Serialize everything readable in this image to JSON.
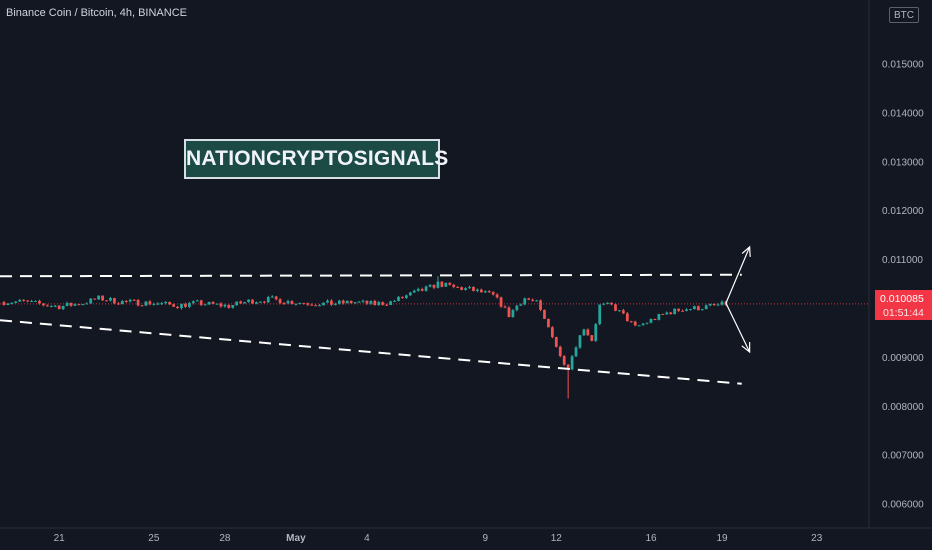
{
  "header": {
    "symbol_title": "Binance Coin / Bitcoin, 4h, BINANCE",
    "currency_badge": "BTC"
  },
  "watermark": {
    "text": "NATIONCRYPTOSIGNALS"
  },
  "price_tag": {
    "price": "0.010085",
    "countdown": "01:51:44"
  },
  "colors": {
    "background": "#131722",
    "up": "#26a69a",
    "down": "#ef5350",
    "axis_text": "#b2b5be",
    "last_price_line": "#f23645",
    "pattern_lines": "#ffffff"
  },
  "chart_data": {
    "type": "candlestick",
    "title": "Binance Coin / Bitcoin, 4h, BINANCE",
    "ylabel": "BTC",
    "ylim": [
      0.0055,
      0.0163
    ],
    "y_ticks": [
      {
        "value": 0.015,
        "label": "0.015000"
      },
      {
        "value": 0.014,
        "label": "0.014000"
      },
      {
        "value": 0.013,
        "label": "0.013000"
      },
      {
        "value": 0.012,
        "label": "0.012000"
      },
      {
        "value": 0.011,
        "label": "0.011000"
      },
      {
        "value": 0.009,
        "label": "0.009000"
      },
      {
        "value": 0.008,
        "label": "0.008000"
      },
      {
        "value": 0.007,
        "label": "0.007000"
      },
      {
        "value": 0.006,
        "label": "0.006000"
      }
    ],
    "x_ticks": [
      {
        "date": "2022-04-21",
        "label": "21"
      },
      {
        "date": "2022-04-25",
        "label": "25"
      },
      {
        "date": "2022-04-28",
        "label": "28"
      },
      {
        "date": "2022-05-01",
        "label": "May"
      },
      {
        "date": "2022-05-04",
        "label": "4"
      },
      {
        "date": "2022-05-09",
        "label": "9"
      },
      {
        "date": "2022-05-12",
        "label": "12"
      },
      {
        "date": "2022-05-16",
        "label": "16"
      },
      {
        "date": "2022-05-19",
        "label": "19"
      },
      {
        "date": "2022-05-23",
        "label": "23"
      }
    ],
    "x_range": [
      "2022-04-18T12:00",
      "2022-05-25T04:00"
    ],
    "last_price": 0.010085,
    "price_path": [
      [
        "2022-04-18T12:00",
        0.01012
      ],
      [
        "2022-04-19T12:00",
        0.01013
      ],
      [
        "2022-04-20T08:00",
        0.01007
      ],
      [
        "2022-04-21T00:00",
        0.01003
      ],
      [
        "2022-04-22T00:00",
        0.0101
      ],
      [
        "2022-04-22T16:00",
        0.0102
      ],
      [
        "2022-04-23T12:00",
        0.01013
      ],
      [
        "2022-04-25T00:00",
        0.0101
      ],
      [
        "2022-04-26T00:00",
        0.01005
      ],
      [
        "2022-04-26T20:00",
        0.0101
      ],
      [
        "2022-04-27T12:00",
        0.01007
      ],
      [
        "2022-04-28T04:00",
        0.01004
      ],
      [
        "2022-04-29T00:00",
        0.01014
      ],
      [
        "2022-04-30T00:00",
        0.01018
      ],
      [
        "2022-04-30T16:00",
        0.01013
      ],
      [
        "2022-05-01T12:00",
        0.0101
      ],
      [
        "2022-05-02T12:00",
        0.01009
      ],
      [
        "2022-05-03T12:00",
        0.01012
      ],
      [
        "2022-05-04T08:00",
        0.01008
      ],
      [
        "2022-05-05T00:00",
        0.01012
      ],
      [
        "2022-05-05T20:00",
        0.01028
      ],
      [
        "2022-05-06T16:00",
        0.01042
      ],
      [
        "2022-05-07T00:00",
        0.0105
      ],
      [
        "2022-05-07T16:00",
        0.01042
      ],
      [
        "2022-05-08T08:00",
        0.01038
      ],
      [
        "2022-05-09T00:00",
        0.0103
      ],
      [
        "2022-05-09T08:00",
        0.01025
      ],
      [
        "2022-05-09T16:00",
        0.01008
      ],
      [
        "2022-05-10T00:00",
        0.00985
      ],
      [
        "2022-05-10T08:00",
        0.01005
      ],
      [
        "2022-05-10T16:00",
        0.0102
      ],
      [
        "2022-05-11T04:00",
        0.0101
      ],
      [
        "2022-05-11T12:00",
        0.00975
      ],
      [
        "2022-05-11T20:00",
        0.00945
      ],
      [
        "2022-05-12T04:00",
        0.009
      ],
      [
        "2022-05-12T12:00",
        0.0088
      ],
      [
        "2022-05-12T20:00",
        0.00925
      ],
      [
        "2022-05-13T04:00",
        0.0096
      ],
      [
        "2022-05-13T12:00",
        0.00935
      ],
      [
        "2022-05-13T20:00",
        0.01005
      ],
      [
        "2022-05-14T08:00",
        0.01005
      ],
      [
        "2022-05-14T20:00",
        0.00985
      ],
      [
        "2022-05-15T08:00",
        0.0096
      ],
      [
        "2022-05-16T00:00",
        0.00975
      ],
      [
        "2022-05-16T16:00",
        0.0099
      ],
      [
        "2022-05-17T08:00",
        0.00998
      ],
      [
        "2022-05-18T00:00",
        0.01
      ],
      [
        "2022-05-18T16:00",
        0.01005
      ],
      [
        "2022-05-19T00:00",
        0.01007
      ],
      [
        "2022-05-19T04:00",
        0.010085
      ]
    ],
    "wick_extremes": {
      "low": 0.00815,
      "low_date": "2022-05-12T12:00",
      "high": 0.01065,
      "high_date": "2022-05-07T00:00"
    },
    "annotations": {
      "upper_line": {
        "start": [
          "2022-04-18T12:00",
          0.01065
        ],
        "end": [
          "2022-05-19T20:00",
          0.01068
        ],
        "style": "dashed"
      },
      "lower_line": {
        "start": [
          "2022-04-18T12:00",
          0.00975
        ],
        "end": [
          "2022-05-19T20:00",
          0.00845
        ],
        "style": "dashed"
      },
      "arrow_up": {
        "from": [
          "2022-05-19T04:00",
          0.0101
        ],
        "to": [
          "2022-05-20T04:00",
          0.01125
        ]
      },
      "arrow_down": {
        "from": [
          "2022-05-19T04:00",
          0.0101
        ],
        "to": [
          "2022-05-20T04:00",
          0.0091
        ]
      }
    }
  }
}
